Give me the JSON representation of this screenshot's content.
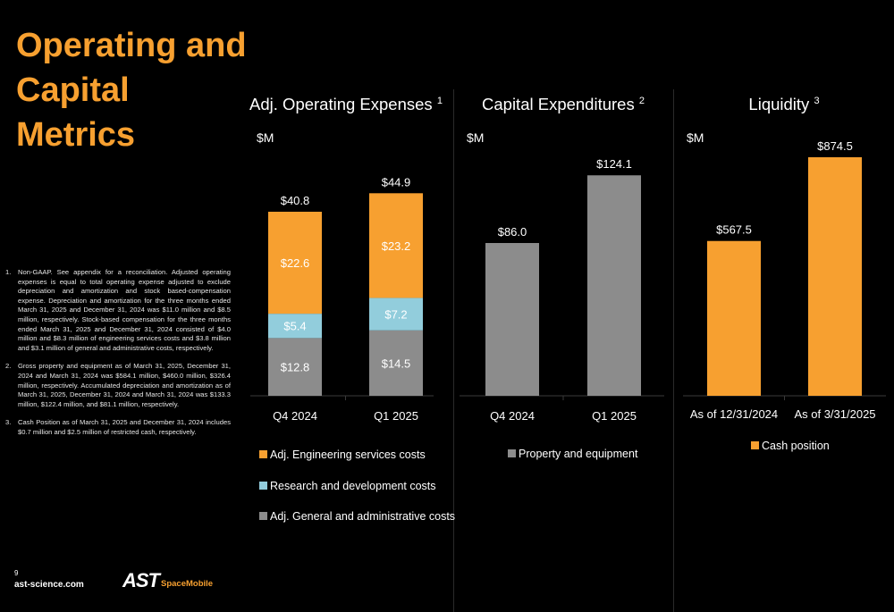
{
  "page": {
    "title": "Operating and Capital Metrics",
    "page_number": "9",
    "footer_url": "ast-science.com",
    "logo": {
      "primary": "AST",
      "secondary": "SpaceMobile"
    },
    "colors": {
      "accent_orange": "#f7a030",
      "light_blue": "#92cddc",
      "gray": "#8c8c8c",
      "background": "#000000"
    }
  },
  "footnotes": [
    {
      "num": "1.",
      "text": "Non-GAAP. See appendix for a reconciliation. Adjusted operating expenses is equal to total operating expense adjusted to exclude depreciation and amortization and stock based-compensation expense. Depreciation and amortization for the three months ended March 31, 2025 and December 31, 2024 was $11.0 million and $8.5 million, respectively. Stock-based compensation for the three months ended March 31, 2025 and December 31, 2024 consisted of $4.0 million and $8.3 million of engineering services costs and $3.8 million and $3.1 million of general and administrative costs, respectively."
    },
    {
      "num": "2.",
      "text": "Gross property and equipment as of March 31, 2025, December 31, 2024 and March 31, 2024 was $584.1 million, $460.0 million, $326.4 million, respectively. Accumulated depreciation and amortization as of March 31, 2025, December 31, 2024 and March 31, 2024 was $133.3 million, $122.4 million, and $81.1 million, respectively."
    },
    {
      "num": "3.",
      "text": "Cash Position as of March 31, 2025 and December 31, 2024 includes $0.7 million and $2.5 million of restricted cash, respectively."
    }
  ],
  "chart_data": [
    {
      "type": "bar",
      "stacked": true,
      "title": "Adj. Operating Expenses",
      "title_sup": "1",
      "unit_label": "$M",
      "categories": [
        "Q4 2024",
        "Q1 2025"
      ],
      "series": [
        {
          "name": "Adj. General and administrative costs",
          "color": "#8c8c8c",
          "values": [
            12.8,
            14.5
          ],
          "labels": [
            "$12.8",
            "$14.5"
          ]
        },
        {
          "name": "Research and development costs",
          "color": "#92cddc",
          "values": [
            5.4,
            7.2
          ],
          "labels": [
            "$5.4",
            "$7.2"
          ]
        },
        {
          "name": "Adj. Engineering services costs",
          "color": "#f7a030",
          "values": [
            22.6,
            23.2
          ],
          "labels": [
            "$22.6",
            "$23.2"
          ]
        }
      ],
      "totals": [
        40.8,
        44.9
      ],
      "total_labels": [
        "$40.8",
        "$44.9"
      ],
      "legend": [
        {
          "name": "Adj. Engineering services costs",
          "color": "#f7a030"
        },
        {
          "name": "Research and development costs",
          "color": "#92cddc"
        },
        {
          "name": "Adj. General and administrative costs",
          "color": "#8c8c8c"
        }
      ],
      "legend_position": "bottom",
      "grid": false
    },
    {
      "type": "bar",
      "title": "Capital Expenditures",
      "title_sup": "2",
      "unit_label": "$M",
      "categories": [
        "Q4 2024",
        "Q1 2025"
      ],
      "series": [
        {
          "name": "Property and equipment",
          "color": "#8c8c8c",
          "values": [
            86.0,
            124.1
          ],
          "labels": [
            "$86.0",
            "$124.1"
          ]
        }
      ],
      "legend": [
        {
          "name": "Property and equipment",
          "color": "#8c8c8c"
        }
      ],
      "legend_position": "bottom",
      "grid": false
    },
    {
      "type": "bar",
      "title": "Liquidity",
      "title_sup": "3",
      "unit_label": "$M",
      "categories": [
        "As of 12/31/2024",
        "As of 3/31/2025"
      ],
      "series": [
        {
          "name": "Cash position",
          "color": "#f7a030",
          "values": [
            567.5,
            874.5
          ],
          "labels": [
            "$567.5",
            "$874.5"
          ]
        }
      ],
      "legend": [
        {
          "name": "Cash position",
          "color": "#f7a030"
        }
      ],
      "legend_position": "bottom",
      "grid": false
    }
  ]
}
